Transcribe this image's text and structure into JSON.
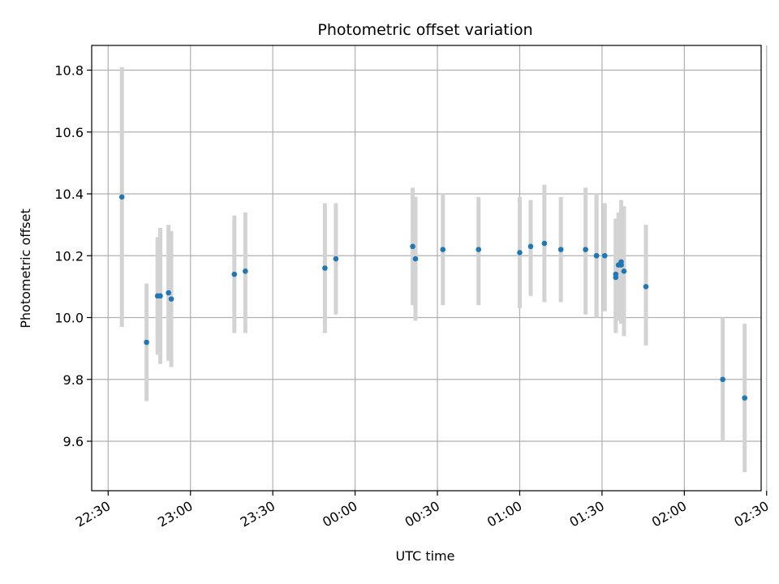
{
  "chart_data": {
    "type": "scatter",
    "title": "Photometric offset variation",
    "xlabel": "UTC time",
    "ylabel": "Photometric offset",
    "x_axis_kind": "time",
    "x_ticks": [
      "22:30",
      "23:00",
      "23:30",
      "00:00",
      "00:30",
      "01:00",
      "01:30",
      "02:00",
      "02:30"
    ],
    "xlim": [
      "22:24",
      "02:28"
    ],
    "y_ticks": [
      "9.6",
      "9.8",
      "10.0",
      "10.2",
      "10.4",
      "10.6",
      "10.8"
    ],
    "ylim": [
      9.44,
      10.88
    ],
    "grid": true,
    "marker_color": "#1f77b4",
    "errorbar_color": "#d3d3d3",
    "points": [
      {
        "x": "22:35",
        "y": 10.39,
        "low": 9.97,
        "high": 10.81
      },
      {
        "x": "22:44",
        "y": 9.92,
        "low": 9.73,
        "high": 10.11
      },
      {
        "x": "22:48",
        "y": 10.07,
        "low": 9.88,
        "high": 10.26
      },
      {
        "x": "22:49",
        "y": 10.07,
        "low": 9.85,
        "high": 10.29
      },
      {
        "x": "22:52",
        "y": 10.08,
        "low": 9.86,
        "high": 10.3
      },
      {
        "x": "22:53",
        "y": 10.06,
        "low": 9.84,
        "high": 10.28
      },
      {
        "x": "23:16",
        "y": 10.14,
        "low": 9.95,
        "high": 10.33
      },
      {
        "x": "23:20",
        "y": 10.15,
        "low": 9.95,
        "high": 10.34
      },
      {
        "x": "23:49",
        "y": 10.16,
        "low": 9.95,
        "high": 10.37
      },
      {
        "x": "23:53",
        "y": 10.19,
        "low": 10.01,
        "high": 10.37
      },
      {
        "x": "00:21",
        "y": 10.23,
        "low": 10.04,
        "high": 10.42
      },
      {
        "x": "00:22",
        "y": 10.19,
        "low": 9.99,
        "high": 10.39
      },
      {
        "x": "00:32",
        "y": 10.22,
        "low": 10.04,
        "high": 10.4
      },
      {
        "x": "00:45",
        "y": 10.22,
        "low": 10.04,
        "high": 10.39
      },
      {
        "x": "01:00",
        "y": 10.21,
        "low": 10.03,
        "high": 10.39
      },
      {
        "x": "01:04",
        "y": 10.23,
        "low": 10.07,
        "high": 10.38
      },
      {
        "x": "01:09",
        "y": 10.24,
        "low": 10.05,
        "high": 10.43
      },
      {
        "x": "01:15",
        "y": 10.22,
        "low": 10.05,
        "high": 10.39
      },
      {
        "x": "01:24",
        "y": 10.22,
        "low": 10.01,
        "high": 10.42
      },
      {
        "x": "01:28",
        "y": 10.2,
        "low": 10.0,
        "high": 10.4
      },
      {
        "x": "01:28",
        "y": 10.2,
        "low": 10.0,
        "high": 10.4
      },
      {
        "x": "01:31",
        "y": 10.2,
        "low": 10.02,
        "high": 10.37
      },
      {
        "x": "01:35",
        "y": 10.14,
        "low": 9.96,
        "high": 10.32
      },
      {
        "x": "01:35",
        "y": 10.13,
        "low": 9.95,
        "high": 10.32
      },
      {
        "x": "01:36",
        "y": 10.17,
        "low": 9.99,
        "high": 10.34
      },
      {
        "x": "01:37",
        "y": 10.17,
        "low": 9.98,
        "high": 10.35
      },
      {
        "x": "01:37",
        "y": 10.18,
        "low": 9.98,
        "high": 10.38
      },
      {
        "x": "01:38",
        "y": 10.15,
        "low": 9.94,
        "high": 10.36
      },
      {
        "x": "01:46",
        "y": 10.1,
        "low": 9.91,
        "high": 10.3
      },
      {
        "x": "02:14",
        "y": 9.8,
        "low": 9.6,
        "high": 10.0
      },
      {
        "x": "02:22",
        "y": 9.74,
        "low": 9.5,
        "high": 9.98
      }
    ]
  }
}
